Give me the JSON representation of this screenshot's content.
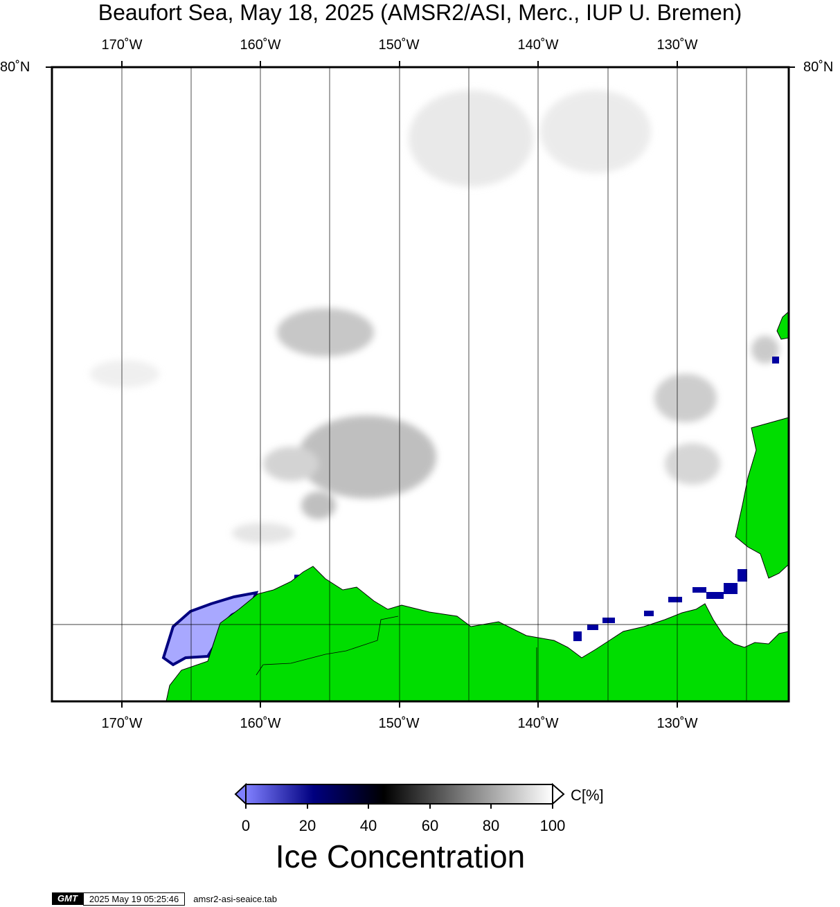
{
  "title": "Beaufort Sea, May 18, 2025 (AMSR2/ASI, Merc., IUP U. Bremen)",
  "map": {
    "lon_ticks_top": [
      "170˚W",
      "160˚W",
      "150˚W",
      "140˚W",
      "130˚W"
    ],
    "lon_ticks_bottom": [
      "170˚W",
      "160˚W",
      "150˚W",
      "140˚W",
      "130˚W"
    ],
    "lat_left": "80˚N",
    "lat_right": "80˚N",
    "land_color": "#00dd00",
    "coast_color": "#000000"
  },
  "colorbar": {
    "ticks": [
      "0",
      "20",
      "40",
      "60",
      "80",
      "100"
    ],
    "unit": "C[%]",
    "title": "Ice Concentration",
    "stops": [
      "#8080ff",
      "#000080",
      "#000000",
      "#808080",
      "#ffffff"
    ]
  },
  "footer": {
    "logo": "GMT",
    "timestamp": "2025 May 19 05:25:46",
    "file": "amsr2-asi-seaice.tab"
  }
}
